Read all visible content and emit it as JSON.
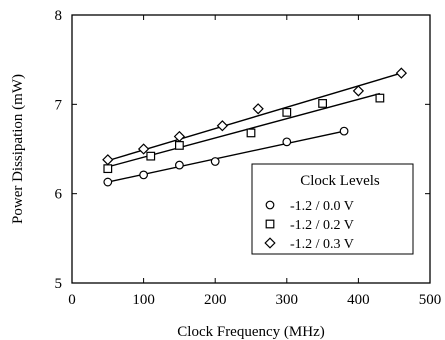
{
  "chart_data": {
    "type": "scatter",
    "xlabel": "Clock Frequency (MHz)",
    "ylabel": "Power Dissipation (mW)",
    "xlim": [
      0,
      500
    ],
    "ylim": [
      5,
      8
    ],
    "xticks": [
      "0",
      "100",
      "200",
      "300",
      "400",
      "500"
    ],
    "yticks": [
      "5",
      "6",
      "7",
      "8"
    ],
    "grid": false,
    "legend": {
      "title": "Clock Levels",
      "position": "lower-right"
    },
    "series": [
      {
        "name": "-1.2 / 0.0 V",
        "marker": "circle",
        "x": [
          50,
          100,
          150,
          200,
          300,
          380
        ],
        "y": [
          6.13,
          6.21,
          6.32,
          6.36,
          6.58,
          6.7
        ],
        "fit": [
          [
            50,
            6.13
          ],
          [
            380,
            6.7
          ]
        ]
      },
      {
        "name": "-1.2 / 0.2 V",
        "marker": "square",
        "x": [
          50,
          110,
          150,
          250,
          300,
          350,
          430
        ],
        "y": [
          6.28,
          6.42,
          6.54,
          6.68,
          6.91,
          7.01,
          7.07
        ],
        "fit": [
          [
            50,
            6.3
          ],
          [
            430,
            7.12
          ]
        ]
      },
      {
        "name": "-1.2 / 0.3 V",
        "marker": "diamond",
        "x": [
          50,
          100,
          150,
          210,
          260,
          400,
          460
        ],
        "y": [
          6.38,
          6.5,
          6.64,
          6.76,
          6.95,
          7.15,
          7.35
        ],
        "fit": [
          [
            50,
            6.37
          ],
          [
            460,
            7.35
          ]
        ]
      }
    ]
  }
}
